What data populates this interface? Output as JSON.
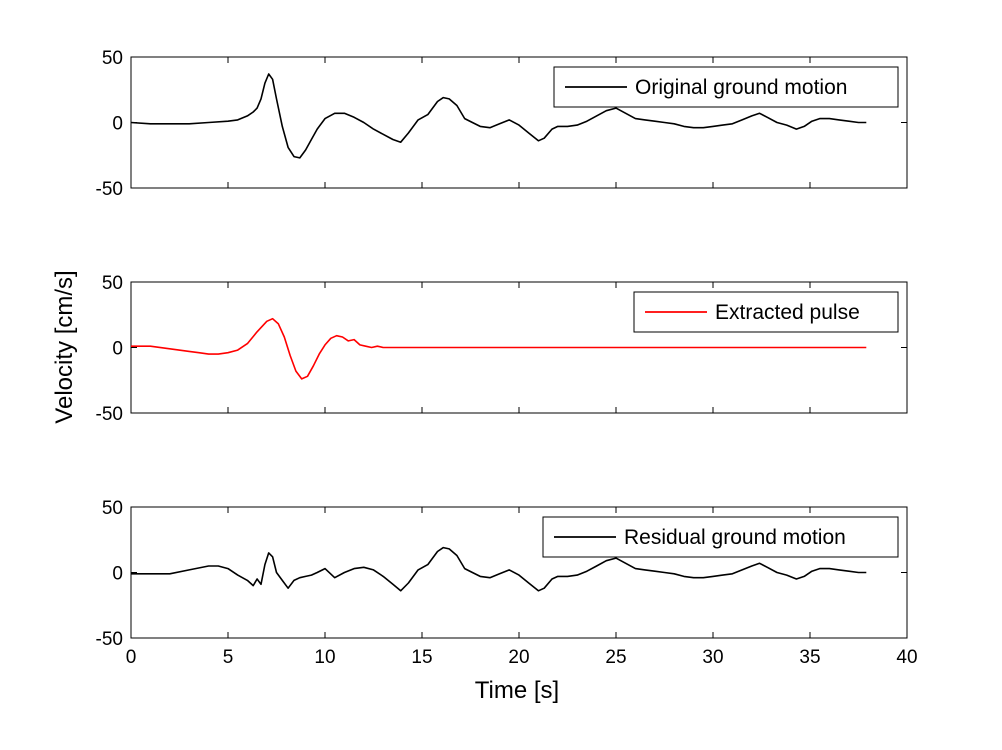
{
  "chart_data": {
    "type": "line",
    "xlabel": "Time [s]",
    "ylabel": "Velocity [cm/s]",
    "xlim": [
      0,
      40
    ],
    "xticks": [
      0,
      5,
      10,
      15,
      20,
      25,
      30,
      35,
      40
    ],
    "x_tick_labels": [
      "0",
      "5",
      "10",
      "15",
      "20",
      "25",
      "30",
      "35",
      "40"
    ],
    "panels": [
      {
        "id": "original",
        "ylim": [
          -50,
          50
        ],
        "yticks": [
          -50,
          0,
          50
        ],
        "y_tick_labels": [
          "-50",
          "0",
          "50"
        ],
        "legend": "Original ground motion",
        "legend_position": "top-right",
        "color": "#000000",
        "x": [
          0,
          1,
          2,
          3,
          4,
          5,
          5.5,
          6,
          6.3,
          6.5,
          6.7,
          6.9,
          7.1,
          7.3,
          7.5,
          7.8,
          8.1,
          8.4,
          8.7,
          9.0,
          9.3,
          9.6,
          10.0,
          10.5,
          11.0,
          11.5,
          12.0,
          12.5,
          13.0,
          13.5,
          13.9,
          14.3,
          14.8,
          15.3,
          15.8,
          16.1,
          16.4,
          16.8,
          17.2,
          17.6,
          18.0,
          18.5,
          19.0,
          19.5,
          20.0,
          20.5,
          21.0,
          21.3,
          21.7,
          22.0,
          22.5,
          23.0,
          23.5,
          24.0,
          24.5,
          25.0,
          25.5,
          26.0,
          26.5,
          27.0,
          27.5,
          28.0,
          28.5,
          29.0,
          29.5,
          30.0,
          30.5,
          31.0,
          31.5,
          32.0,
          32.4,
          32.8,
          33.3,
          33.8,
          34.3,
          34.7,
          35.1,
          35.5,
          36.0,
          36.5,
          37.0,
          37.5,
          37.9
        ],
        "y": [
          0,
          -1,
          -1,
          -1,
          0,
          1,
          2,
          5,
          8,
          11,
          18,
          30,
          37,
          33,
          18,
          -3,
          -19,
          -26,
          -27,
          -21,
          -13,
          -5,
          3,
          7,
          7,
          4,
          0,
          -5,
          -9,
          -13,
          -15,
          -8,
          2,
          6,
          16,
          19,
          18,
          13,
          3,
          0,
          -3,
          -4,
          -1,
          2,
          -2,
          -8,
          -14,
          -12,
          -5,
          -3,
          -3,
          -2,
          1,
          5,
          9,
          11,
          7,
          3,
          2,
          1,
          0,
          -1,
          -3,
          -4,
          -4,
          -3,
          -2,
          -1,
          2,
          5,
          7,
          4,
          0,
          -2,
          -5,
          -3,
          1,
          3,
          3,
          2,
          1,
          0,
          0
        ]
      },
      {
        "id": "pulse",
        "ylim": [
          -50,
          50
        ],
        "yticks": [
          -50,
          0,
          50
        ],
        "y_tick_labels": [
          "-50",
          "0",
          "50"
        ],
        "legend": "Extracted pulse",
        "legend_position": "top-right",
        "color": "#ff0000",
        "x": [
          0,
          1,
          2,
          3,
          3.5,
          4,
          4.5,
          5,
          5.5,
          6,
          6.5,
          7,
          7.3,
          7.6,
          7.9,
          8.2,
          8.5,
          8.8,
          9.1,
          9.4,
          9.7,
          10.0,
          10.3,
          10.6,
          10.9,
          11.2,
          11.5,
          11.8,
          12.1,
          12.4,
          12.7,
          13.0,
          14.0,
          16.0,
          20.0,
          25.0,
          30.0,
          35.0,
          37.9
        ],
        "y": [
          1,
          1,
          -1,
          -3,
          -4,
          -5,
          -5,
          -4,
          -2,
          3,
          12,
          20,
          22,
          18,
          8,
          -6,
          -18,
          -24,
          -22,
          -14,
          -5,
          2,
          7,
          9,
          8,
          5,
          6,
          2,
          1,
          0,
          1,
          0,
          0,
          0,
          0,
          0,
          0,
          0,
          0
        ]
      },
      {
        "id": "residual",
        "ylim": [
          -50,
          50
        ],
        "yticks": [
          -50,
          0,
          50
        ],
        "y_tick_labels": [
          "-50",
          "0",
          "50"
        ],
        "legend": "Residual ground motion",
        "legend_position": "top-right",
        "color": "#000000",
        "x": [
          0,
          1,
          2,
          3,
          4,
          4.5,
          5,
          5.5,
          6,
          6.3,
          6.5,
          6.7,
          6.9,
          7.1,
          7.3,
          7.5,
          7.8,
          8.1,
          8.4,
          8.7,
          9.0,
          9.3,
          9.6,
          10.0,
          10.5,
          11.0,
          11.5,
          12.0,
          12.5,
          13.0,
          13.5,
          13.9,
          14.3,
          14.8,
          15.3,
          15.8,
          16.1,
          16.4,
          16.8,
          17.2,
          17.6,
          18.0,
          18.5,
          19.0,
          19.5,
          20.0,
          20.5,
          21.0,
          21.3,
          21.7,
          22.0,
          22.5,
          23.0,
          23.5,
          24.0,
          24.5,
          25.0,
          25.5,
          26.0,
          26.5,
          27.0,
          27.5,
          28.0,
          28.5,
          29.0,
          29.5,
          30.0,
          30.5,
          31.0,
          31.5,
          32.0,
          32.4,
          32.8,
          33.3,
          33.8,
          34.3,
          34.7,
          35.1,
          35.5,
          36.0,
          36.5,
          37.0,
          37.5,
          37.9
        ],
        "y": [
          -1,
          -1,
          -1,
          2,
          5,
          5,
          3,
          -2,
          -6,
          -10,
          -5,
          -9,
          6,
          15,
          12,
          0,
          -6,
          -12,
          -6,
          -4,
          -3,
          -2,
          0,
          3,
          -4,
          0,
          3,
          4,
          2,
          -3,
          -9,
          -14,
          -8,
          2,
          6,
          16,
          19,
          18,
          13,
          3,
          0,
          -3,
          -4,
          -1,
          2,
          -2,
          -8,
          -14,
          -12,
          -5,
          -3,
          -3,
          -2,
          1,
          5,
          9,
          11,
          7,
          3,
          2,
          1,
          0,
          -1,
          -3,
          -4,
          -4,
          -3,
          -2,
          -1,
          2,
          5,
          7,
          4,
          0,
          -2,
          -5,
          -3,
          1,
          3,
          3,
          2,
          1,
          0,
          0
        ]
      }
    ]
  }
}
